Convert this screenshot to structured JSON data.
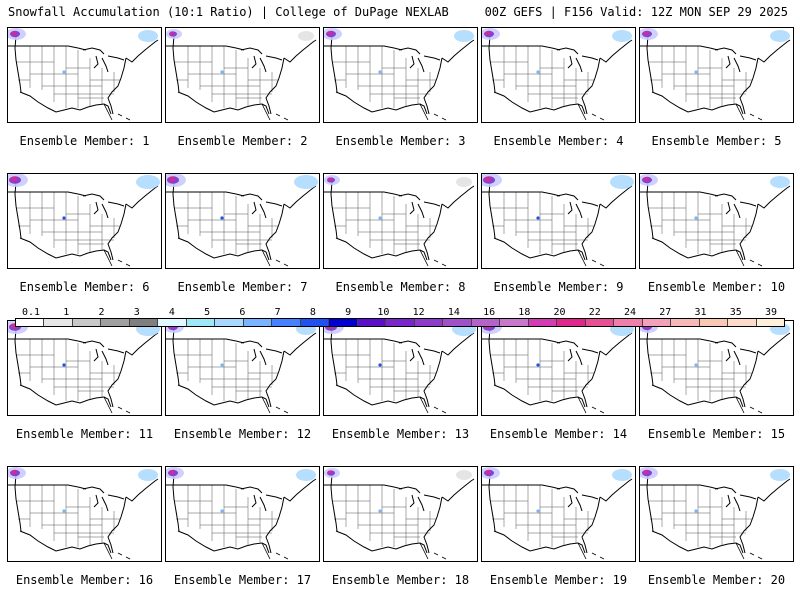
{
  "header": {
    "title_left": "Snowfall Accumulation (10:1 Ratio) | College of DuPage NEXLAB",
    "title_right": "00Z GEFS | F156 Valid: 12Z MON SEP 29 2025"
  },
  "panels": [
    {
      "label": "Ensemble Member: 1",
      "snow": "moderate"
    },
    {
      "label": "Ensemble Member: 2",
      "snow": "light"
    },
    {
      "label": "Ensemble Member: 3",
      "snow": "moderate"
    },
    {
      "label": "Ensemble Member: 4",
      "snow": "moderate"
    },
    {
      "label": "Ensemble Member: 5",
      "snow": "moderate"
    },
    {
      "label": "Ensemble Member: 6",
      "snow": "heavy"
    },
    {
      "label": "Ensemble Member: 7",
      "snow": "heavy"
    },
    {
      "label": "Ensemble Member: 8",
      "snow": "light"
    },
    {
      "label": "Ensemble Member: 9",
      "snow": "heavy"
    },
    {
      "label": "Ensemble Member: 10",
      "snow": "moderate"
    },
    {
      "label": "Ensemble Member: 11",
      "snow": "heavy"
    },
    {
      "label": "Ensemble Member: 12",
      "snow": "moderate"
    },
    {
      "label": "Ensemble Member: 13",
      "snow": "heavy"
    },
    {
      "label": "Ensemble Member: 14",
      "snow": "heavy"
    },
    {
      "label": "Ensemble Member: 15",
      "snow": "moderate"
    },
    {
      "label": "Ensemble Member: 16",
      "snow": "moderate"
    },
    {
      "label": "Ensemble Member: 17",
      "snow": "moderate"
    },
    {
      "label": "Ensemble Member: 18",
      "snow": "light"
    },
    {
      "label": "Ensemble Member: 19",
      "snow": "moderate"
    },
    {
      "label": "Ensemble Member: 20",
      "snow": "moderate"
    }
  ],
  "legend": {
    "ticks": [
      "0.1",
      "1",
      "2",
      "3",
      "4",
      "5",
      "6",
      "7",
      "8",
      "9",
      "10",
      "12",
      "14",
      "16",
      "18",
      "20",
      "22",
      "24",
      "27",
      "31",
      "35",
      "39"
    ],
    "colors": [
      "#ffffff",
      "#e6e6e6",
      "#c8c8c8",
      "#a0a0a0",
      "#7f7f7f",
      "#e0f8ff",
      "#9fe8f8",
      "#a8d8ff",
      "#78b4ff",
      "#4682ff",
      "#2050f0",
      "#0000d0",
      "#5a10c8",
      "#7828c8",
      "#8c3cc8",
      "#a050c8",
      "#b464c8",
      "#c878c8",
      "#d23cb4",
      "#e0288c",
      "#e85096",
      "#f07eaa",
      "#f4a0b8",
      "#f8b8b8",
      "#f8c8b4",
      "#fcdcc8",
      "#fff0dc"
    ]
  }
}
